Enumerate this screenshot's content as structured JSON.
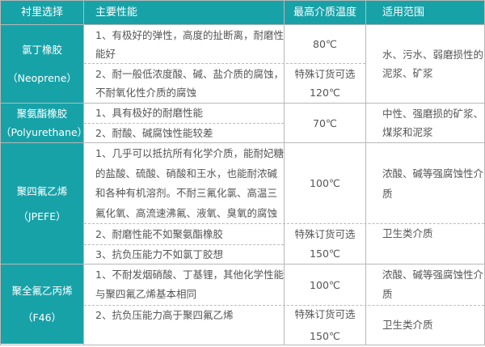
{
  "header": [
    "衬里选择",
    "主要性能",
    "最高介质温度",
    "适用范围"
  ],
  "colors": {
    "accent": "#17a2a8",
    "text": "#555555",
    "border": "#b8b8b8"
  },
  "rows": [
    {
      "name": "氯丁橡胶",
      "code": "（Neoprene）",
      "props": [
        "1、有极好的弹性，高度的扯断离，耐磨性能好",
        "2、耐一般低浓度酸、碱、盐介质的腐蚀，不耐氧化性介质的腐蚀"
      ],
      "temp1": "80℃",
      "temp2a": "特殊订货可选",
      "temp2b": "120℃",
      "use": "水、污水、弱磨损性的泥浆、矿浆"
    },
    {
      "name": "聚氨酯橡胶",
      "code": "（Polyurethane）",
      "props": [
        "1、具有极好的耐磨性能",
        "2、耐酸、碱腐蚀性能较差"
      ],
      "temp1": "70℃",
      "use": "中性、强磨损的矿浆、煤浆和泥浆"
    },
    {
      "name": "聚四氟乙烯",
      "code": "（JPEFE）",
      "props": [
        "1、几乎可以抵抗所有化学介质，能耐妃糖的盐酸、硫酸、硝酸和王水，也能耐浓碱和各种有机溶剂。不耐三氟化氯、高温三氟化氧、高流速沸氟、液氧、臭氧的腐蚀",
        "2、耐磨性能不如聚氨酯橡胶",
        "3、抗负压能力不如氯丁胶想"
      ],
      "temp1": "100℃",
      "temp2a": "特殊订货可选",
      "temp2b": "150℃",
      "use": "浓酸、碱等强腐蚀性介质",
      "use2": "卫生类介质"
    },
    {
      "name": "聚全氟乙丙烯",
      "code": "（F46）",
      "props": [
        "1、不耐发烟硝酸、丁基锂，其他化学性能与聚四氟乙烯基本相同",
        "2、抗负压能力高于聚四氟乙烯"
      ],
      "temp1": "100℃",
      "temp2a": "特殊订货可选",
      "temp2b": "150℃",
      "use": "浓酸、碱等强腐蚀性介质",
      "use2": "卫生类介质"
    }
  ]
}
